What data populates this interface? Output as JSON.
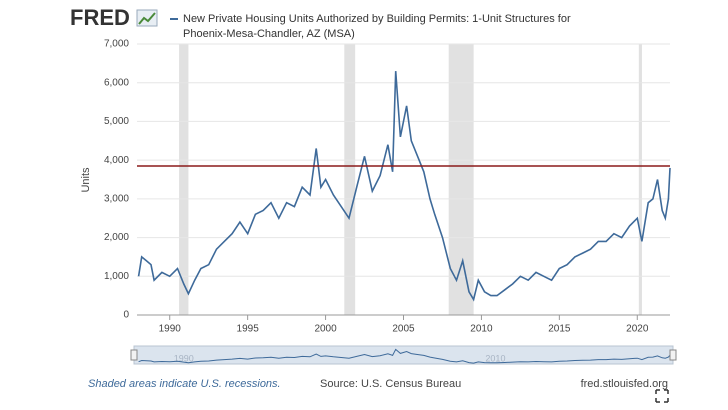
{
  "logo": "FRED",
  "chart_data": {
    "type": "line",
    "title": [
      "New Private Housing Units Authorized by Building Permits: 1-Unit Structures for",
      "Phoenix-Mesa-Chandler, AZ (MSA)"
    ],
    "ylabel": "Units",
    "x": [
      1988.0,
      1988.2,
      1988.5,
      1988.8,
      1989.0,
      1989.5,
      1990.0,
      1990.5,
      1990.9,
      1991.2,
      1991.6,
      1992.0,
      1992.5,
      1993.0,
      1993.5,
      1994.0,
      1994.5,
      1995.0,
      1995.5,
      1996.0,
      1996.5,
      1997.0,
      1997.5,
      1998.0,
      1998.5,
      1999.0,
      1999.4,
      1999.7,
      2000.0,
      2000.5,
      2001.0,
      2001.5,
      2002.0,
      2002.5,
      2003.0,
      2003.5,
      2004.0,
      2004.3,
      2004.5,
      2004.8,
      2005.2,
      2005.5,
      2006.0,
      2006.3,
      2006.7,
      2007.0,
      2007.5,
      2008.0,
      2008.4,
      2008.8,
      2009.2,
      2009.5,
      2009.8,
      2010.2,
      2010.6,
      2011.0,
      2011.5,
      2012.0,
      2012.5,
      2013.0,
      2013.5,
      2014.0,
      2014.5,
      2015.0,
      2015.5,
      2016.0,
      2016.5,
      2017.0,
      2017.5,
      2018.0,
      2018.5,
      2019.0,
      2019.5,
      2020.0,
      2020.3,
      2020.7,
      2021.0,
      2021.3,
      2021.6,
      2021.8,
      2022.0,
      2022.1
    ],
    "series": [
      {
        "name": "New Private Housing Units Authorized by Building Permits: 1-Unit Structures for Phoenix-Mesa-Chandler, AZ (MSA)",
        "color": "#3e6a9a",
        "values": [
          1000,
          1500,
          1400,
          1300,
          900,
          1100,
          1000,
          1200,
          800,
          550,
          900,
          1200,
          1300,
          1700,
          1900,
          2100,
          2400,
          2100,
          2600,
          2700,
          2900,
          2500,
          2900,
          2800,
          3300,
          3100,
          4300,
          3300,
          3500,
          3100,
          2800,
          2500,
          3300,
          4100,
          3200,
          3600,
          4400,
          3700,
          6300,
          4600,
          5400,
          4500,
          4000,
          3700,
          3000,
          2600,
          2000,
          1200,
          900,
          1400,
          600,
          400,
          900,
          600,
          500,
          500,
          650,
          800,
          1000,
          900,
          1100,
          1000,
          900,
          1200,
          1300,
          1500,
          1600,
          1700,
          1900,
          1900,
          2100,
          2000,
          2300,
          2500,
          1900,
          2900,
          3000,
          3500,
          2700,
          2500,
          3000,
          3800
        ]
      }
    ],
    "recessions": [
      [
        1990.6,
        1991.2
      ],
      [
        2001.2,
        2001.9
      ],
      [
        2007.9,
        2009.5
      ],
      [
        2020.1,
        2020.3
      ]
    ],
    "reference_line": 3850,
    "reference_color": "#8b1a1a",
    "xlim": [
      1987.9,
      2022.1
    ],
    "xticks": [
      1990,
      1995,
      2000,
      2005,
      2010,
      2015,
      2020
    ],
    "ylim": [
      0,
      7000
    ],
    "yticks": [
      0,
      {
        "value": 1000,
        "label": "1,000"
      },
      {
        "value": 2000,
        "label": "2,000"
      },
      {
        "value": 3000,
        "label": "3,000"
      },
      {
        "value": 4000,
        "label": "4,000"
      },
      {
        "value": 5000,
        "label": "5,000"
      },
      {
        "value": 6000,
        "label": "6,000"
      },
      {
        "value": 7000,
        "label": "7,000"
      }
    ],
    "grid": true,
    "navigator_xticks": [
      1990,
      2010
    ],
    "note": "Shaded areas indicate U.S. recessions.",
    "source": "Source: U.S. Census Bureau",
    "site": "fred.stlouisfed.org"
  }
}
